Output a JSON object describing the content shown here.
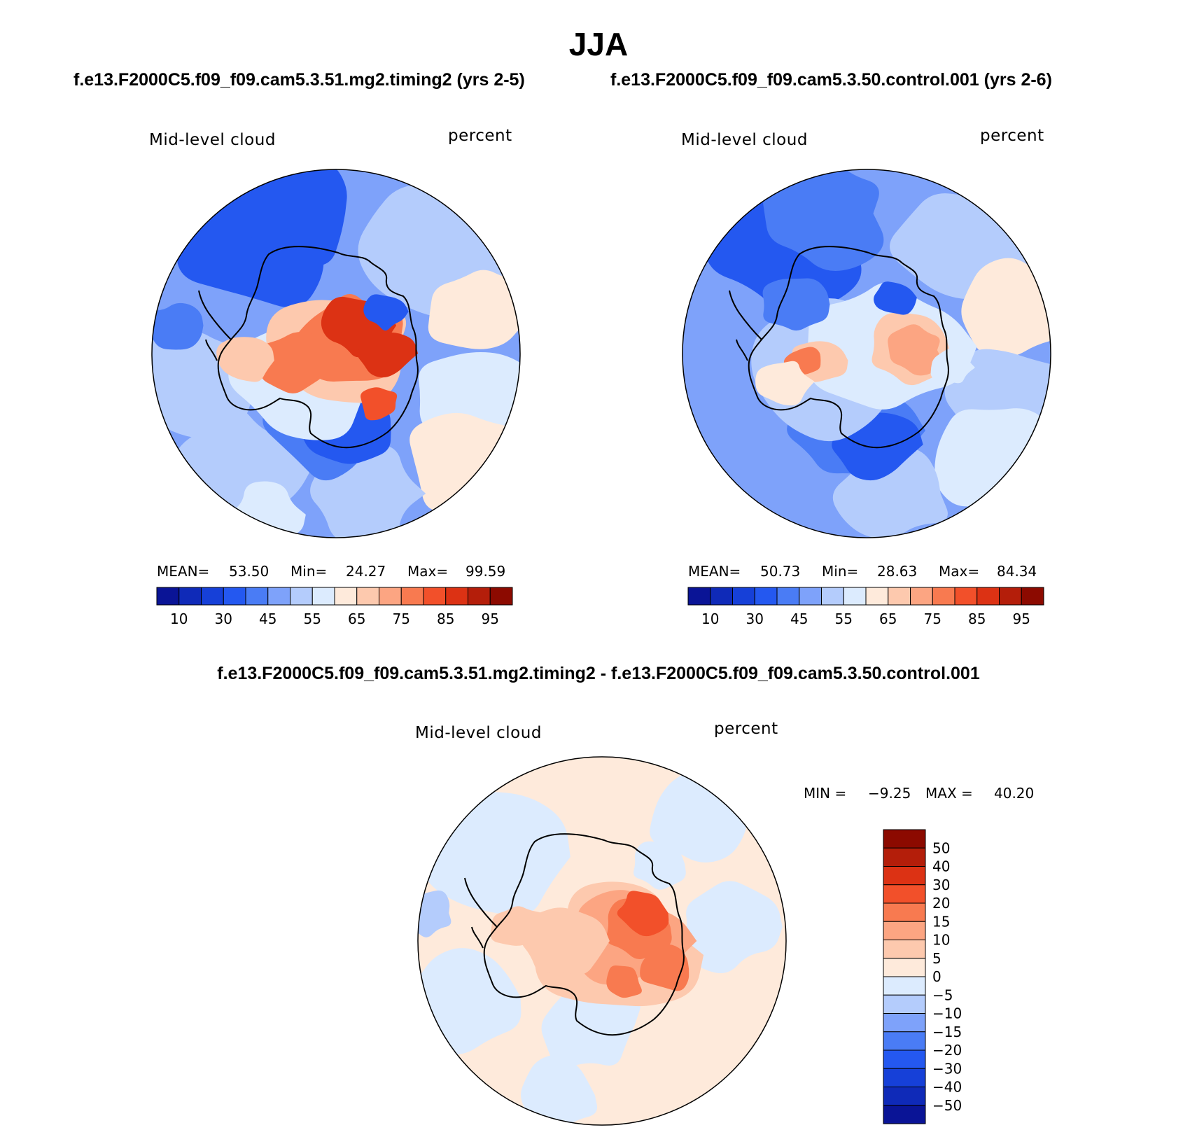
{
  "title": "JJA",
  "panels": [
    {
      "case_title": "f.e13.F2000C5.f09_f09.cam5.3.51.mg2.timing2 (yrs 2-5)",
      "variable": "Mid-level cloud",
      "units": "percent",
      "stats": {
        "mean_label": "MEAN=",
        "mean": "53.50",
        "min_label": "Min=",
        "min": "24.27",
        "max_label": "Max=",
        "max": "99.59"
      }
    },
    {
      "case_title": "f.e13.F2000C5.f09_f09.cam5.3.50.control.001 (yrs 2-6)",
      "variable": "Mid-level cloud",
      "units": "percent",
      "stats": {
        "mean_label": "MEAN=",
        "mean": "50.73",
        "min_label": "Min=",
        "min": "28.63",
        "max_label": "Max=",
        "max": "84.34"
      }
    }
  ],
  "diff_panel": {
    "title": "f.e13.F2000C5.f09_f09.cam5.3.51.mg2.timing2 - f.e13.F2000C5.f09_f09.cam5.3.50.control.001",
    "variable": "Mid-level cloud",
    "units": "percent",
    "minmax": {
      "min_label": "MIN =",
      "min": "−9.25",
      "max_label": "MAX =",
      "max": "40.20"
    }
  },
  "chart_data": [
    {
      "type": "heatmap",
      "projection": "south polar stereographic",
      "field": "Mid-level cloud",
      "units": "percent",
      "colorbar": {
        "orientation": "horizontal",
        "tick_labels": [
          "10",
          "30",
          "45",
          "55",
          "65",
          "75",
          "85",
          "95"
        ],
        "colors": [
          "#0a1496",
          "#0f2ab8",
          "#1640d8",
          "#2458f0",
          "#4a7cf5",
          "#7ea2fa",
          "#b4ccfc",
          "#dcebfe",
          "#feeadb",
          "#fdc9ae",
          "#fca582",
          "#f87a50",
          "#f2502a",
          "#dc3214",
          "#b41e0a",
          "#8c0a00"
        ]
      },
      "mean": 53.5,
      "min": 24.27,
      "max": 99.59
    },
    {
      "type": "heatmap",
      "projection": "south polar stereographic",
      "field": "Mid-level cloud",
      "units": "percent",
      "colorbar": {
        "orientation": "horizontal",
        "tick_labels": [
          "10",
          "30",
          "45",
          "55",
          "65",
          "75",
          "85",
          "95"
        ],
        "colors": [
          "#0a1496",
          "#0f2ab8",
          "#1640d8",
          "#2458f0",
          "#4a7cf5",
          "#7ea2fa",
          "#b4ccfc",
          "#dcebfe",
          "#feeadb",
          "#fdc9ae",
          "#fca582",
          "#f87a50",
          "#f2502a",
          "#dc3214",
          "#b41e0a",
          "#8c0a00"
        ]
      },
      "mean": 50.73,
      "min": 28.63,
      "max": 84.34
    },
    {
      "type": "heatmap",
      "projection": "south polar stereographic",
      "field": "Mid-level cloud",
      "units": "percent",
      "colorbar": {
        "orientation": "vertical",
        "tick_labels": [
          "50",
          "40",
          "30",
          "20",
          "15",
          "10",
          "5",
          "0",
          "−5",
          "−10",
          "−15",
          "−20",
          "−30",
          "−40",
          "−50"
        ],
        "colors": [
          "#8c0a00",
          "#b41e0a",
          "#dc3214",
          "#f2502a",
          "#f87a50",
          "#fca582",
          "#fdc9ae",
          "#feeadb",
          "#dcebfe",
          "#b4ccfc",
          "#7ea2fa",
          "#4a7cf5",
          "#2458f0",
          "#1640d8",
          "#0f2ab8",
          "#0a1496"
        ]
      },
      "min": -9.25,
      "max": 40.2
    }
  ]
}
